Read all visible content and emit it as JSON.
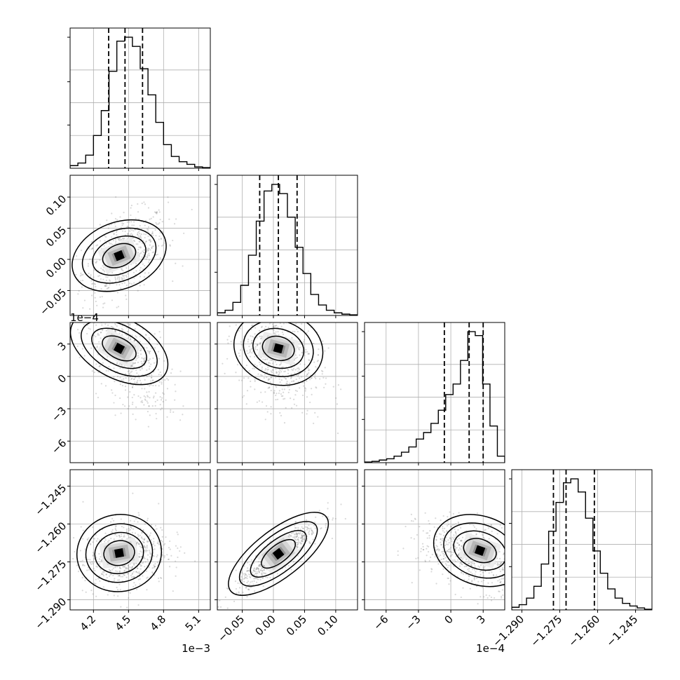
{
  "chart_data": {
    "type": "corner",
    "title": "",
    "grid": true,
    "parameters": [
      {
        "range": [
          4.0,
          5.2
        ],
        "ticks": [
          4.2,
          4.5,
          4.8,
          5.1
        ],
        "tick_labels": [
          "4.2",
          "4.5",
          "4.8",
          "5.1"
        ],
        "offset_label": "1e−3",
        "center": 4.47,
        "sigma": 0.145,
        "quantiles": [
          4.33,
          4.47,
          4.62
        ],
        "hist_counts": [
          0.02,
          0.04,
          0.1,
          0.25,
          0.44,
          0.74,
          0.97,
          1.0,
          0.93,
          0.76,
          0.56,
          0.35,
          0.18,
          0.09,
          0.05,
          0.03,
          0.01,
          0.005
        ]
      },
      {
        "range": [
          -0.09,
          0.135
        ],
        "ticks": [
          -0.05,
          0.0,
          0.05,
          0.1
        ],
        "tick_labels": [
          "−0.05",
          "0.00",
          "0.05",
          "0.10"
        ],
        "offset_label": "",
        "center": 0.008,
        "sigma": 0.027,
        "quantiles": [
          -0.022,
          0.008,
          0.038
        ],
        "hist_counts": [
          0.02,
          0.04,
          0.1,
          0.23,
          0.46,
          0.72,
          0.95,
          1.0,
          0.93,
          0.75,
          0.52,
          0.32,
          0.16,
          0.08,
          0.04,
          0.02,
          0.01,
          0.005
        ]
      },
      {
        "range": [
          -8.0,
          5.0
        ],
        "ticks": [
          -6,
          -3,
          0,
          3
        ],
        "tick_labels": [
          "−6",
          "−3",
          "0",
          "3"
        ],
        "offset_label": "1e−4",
        "center": 2.0,
        "sigma": 2.0,
        "quantiles": [
          -0.6,
          1.7,
          3.0
        ],
        "hist_counts": [
          0.005,
          0.01,
          0.02,
          0.03,
          0.05,
          0.08,
          0.12,
          0.18,
          0.23,
          0.3,
          0.4,
          0.52,
          0.6,
          0.78,
          1.0,
          0.97,
          0.6,
          0.28,
          0.05
        ]
      },
      {
        "range": [
          -1.294,
          -1.2385
        ],
        "ticks": [
          -1.29,
          -1.275,
          -1.26,
          -1.245
        ],
        "tick_labels": [
          "−1.290",
          "−1.275",
          "−1.260",
          "−1.245"
        ],
        "offset_label": "",
        "center": -1.2725,
        "sigma": 0.0055,
        "quantiles": [
          -1.2775,
          -1.2725,
          -1.2613
        ],
        "hist_counts": [
          0.02,
          0.04,
          0.09,
          0.18,
          0.35,
          0.6,
          0.82,
          0.97,
          1.0,
          0.9,
          0.7,
          0.45,
          0.28,
          0.16,
          0.09,
          0.05,
          0.03,
          0.015,
          0.005
        ]
      }
    ],
    "correlations": {
      "0,1": 0.45,
      "0,2": -0.6,
      "1,2": -0.3,
      "0,3": 0.2,
      "1,3": 0.9,
      "2,3": -0.4
    },
    "density_peaks": {
      "0,1": [
        4.42,
        0.006
      ],
      "0,2": [
        4.42,
        2.6
      ],
      "1,2": [
        0.008,
        2.6
      ],
      "0,3": [
        4.42,
        -1.2715
      ],
      "1,3": [
        0.008,
        -1.2718
      ],
      "2,3": [
        2.7,
        -1.2705
      ]
    }
  }
}
